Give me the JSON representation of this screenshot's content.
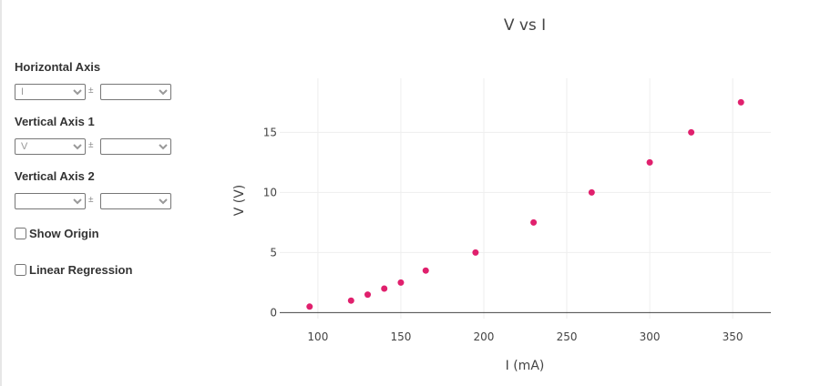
{
  "controls": {
    "horizontal_axis": {
      "label": "Horizontal Axis",
      "value": "I",
      "error_value": ""
    },
    "vertical_axis_1": {
      "label": "Vertical Axis 1",
      "value": "V",
      "error_value": ""
    },
    "vertical_axis_2": {
      "label": "Vertical Axis 2",
      "value": "",
      "error_value": ""
    },
    "plus_minus": "±",
    "show_origin": {
      "label": "Show Origin",
      "checked": false
    },
    "linear_regression": {
      "label": "Linear Regression",
      "checked": false
    }
  },
  "colors": {
    "points": "#e0206d",
    "grid": "#eeeeee",
    "axis": "#444444"
  },
  "chart_data": {
    "type": "scatter",
    "title": "V vs I",
    "xlabel": "I (mA)",
    "ylabel": "V (V)",
    "xlim": [
      77,
      373
    ],
    "ylim": [
      -0.5,
      19.5
    ],
    "xticks": [
      100,
      150,
      200,
      250,
      300,
      350
    ],
    "yticks": [
      0,
      5,
      10,
      15
    ],
    "grid": true,
    "series": [
      {
        "x": [
          95,
          120,
          130,
          140,
          150,
          165,
          195,
          230,
          265,
          300,
          325,
          355
        ],
        "y": [
          0.5,
          1.0,
          1.5,
          2.0,
          2.5,
          3.5,
          5.0,
          7.5,
          10.0,
          12.5,
          15.0,
          17.5
        ]
      }
    ]
  }
}
